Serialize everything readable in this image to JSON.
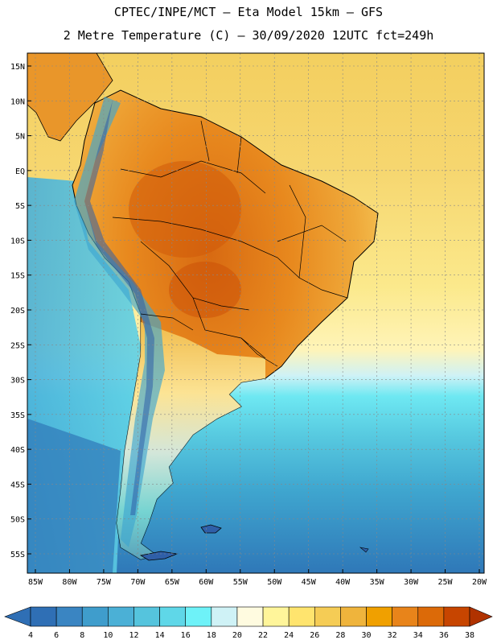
{
  "header": {
    "title_line1": "CPTEC/INPE/MCT –  Eta Model 15km – GFS",
    "title_line2": "2 Metre Temperature (C) – 30/09/2020 12UTC fct=249h"
  },
  "map": {
    "lat_labels": [
      "15N",
      "10N",
      "5N",
      "EQ",
      "5S",
      "10S",
      "15S",
      "20S",
      "25S",
      "30S",
      "35S",
      "40S",
      "45S",
      "50S",
      "55S"
    ],
    "lon_labels": [
      "85W",
      "80W",
      "75W",
      "70W",
      "65W",
      "60W",
      "55W",
      "50W",
      "45W",
      "40W",
      "35W",
      "30W",
      "25W",
      "20W"
    ],
    "lat_values": [
      15,
      10,
      5,
      0,
      -5,
      -10,
      -15,
      -20,
      -25,
      -30,
      -35,
      -40,
      -45,
      -50,
      -55
    ],
    "lon_values": [
      -85,
      -80,
      -75,
      -70,
      -65,
      -60,
      -55,
      -50,
      -45,
      -40,
      -35,
      -30,
      -25,
      -20
    ]
  },
  "colorbar": {
    "labels": [
      "4",
      "6",
      "8",
      "10",
      "12",
      "14",
      "16",
      "18",
      "20",
      "22",
      "24",
      "26",
      "28",
      "30",
      "32",
      "34",
      "36",
      "38"
    ],
    "colors": [
      "#2f6fb5",
      "#3a85c2",
      "#3f9dcc",
      "#4bb0d6",
      "#55c4dd",
      "#5fd7e8",
      "#6ef2f8",
      "#cff2f6",
      "#fffbe0",
      "#fff59a",
      "#ffe46e",
      "#f5cc55",
      "#efb43c",
      "#f0a000",
      "#e8841a",
      "#dc6a08",
      "#c74500",
      "#b03200"
    ]
  }
}
